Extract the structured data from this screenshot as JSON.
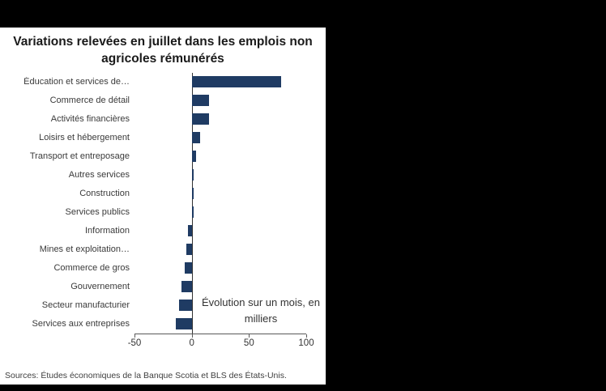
{
  "chart_data": {
    "type": "bar",
    "orientation": "horizontal",
    "title": "Variations relevées en juillet dans les emplois non agricoles rémunérés",
    "categories": [
      "Éducation et services de…",
      "Commerce de détail",
      "Activités financières",
      "Loisirs et hébergement",
      "Transport et entreposage",
      "Autres services",
      "Construction",
      "Services publics",
      "Information",
      "Mines et exploitation…",
      "Commerce de gros",
      "Gouvernement",
      "Secteur manufacturier",
      "Services aux entreprises"
    ],
    "values": [
      78,
      15,
      15,
      7,
      4,
      2,
      2,
      1.5,
      -3,
      -5,
      -6,
      -9,
      -11,
      -14
    ],
    "xlim": [
      -50,
      100
    ],
    "xticks": [
      -50,
      0,
      50,
      100
    ],
    "bar_color": "#1f3b63",
    "annotation": "Évolution sur un mois, en milliers",
    "source": "Sources: Études économiques de la Banque Scotia et BLS des États-Unis.",
    "legend": "none",
    "grid": "off"
  }
}
